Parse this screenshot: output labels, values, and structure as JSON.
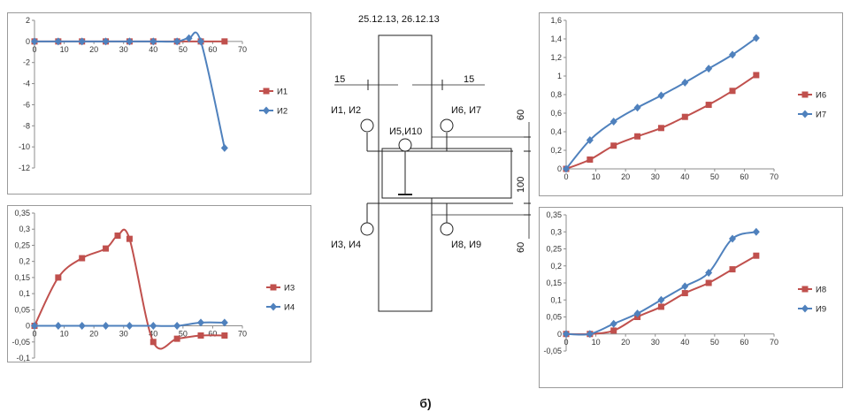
{
  "figure": {
    "caption": "б)"
  },
  "diagram": {
    "dates": "25.12.13, 26.12.13",
    "dim_left": "15",
    "dim_right": "15",
    "dim_top": "60",
    "dim_mid": "100",
    "dim_bottom": "60",
    "label_i1i2": "И1, И2",
    "label_i6i7": "И6, И7",
    "label_i5i10": "И5,И10",
    "label_i3i4": "И3, И4",
    "label_i8i9": "И8, И9"
  },
  "chart_data": [
    {
      "type": "line",
      "title": "",
      "xlim": [
        0,
        70
      ],
      "ylim": [
        -12,
        2
      ],
      "xticks": [
        0,
        10,
        20,
        30,
        40,
        50,
        60,
        70
      ],
      "yticks": [
        2,
        0,
        -2,
        -4,
        -6,
        -8,
        -10,
        -12
      ],
      "xaxis_at": 0,
      "legend": "right",
      "series": [
        {
          "name": "И1",
          "color": "#c0504d",
          "marker": "square",
          "x": [
            0,
            8,
            16,
            24,
            32,
            40,
            48,
            56,
            64
          ],
          "y": [
            0,
            0,
            0,
            0,
            0,
            0,
            0,
            0,
            0
          ]
        },
        {
          "name": "И2",
          "color": "#4f81bd",
          "marker": "diamond",
          "x": [
            0,
            8,
            16,
            24,
            32,
            40,
            48,
            52,
            56,
            64
          ],
          "y": [
            0,
            0,
            0,
            0,
            0,
            0,
            0,
            0.3,
            0,
            -10.1
          ]
        }
      ]
    },
    {
      "type": "line",
      "title": "",
      "xlim": [
        0,
        70
      ],
      "ylim": [
        -0.1,
        0.35
      ],
      "xticks": [
        0,
        10,
        20,
        30,
        40,
        50,
        60,
        70
      ],
      "yticks": [
        0.35,
        0.3,
        0.25,
        0.2,
        0.15,
        0.1,
        0.05,
        0,
        -0.05,
        -0.1
      ],
      "ytick_labels": [
        "0,35",
        "0,3",
        "0,25",
        "0,2",
        "0,15",
        "0,1",
        "0,05",
        "0",
        "-0,05",
        "-0,1"
      ],
      "xaxis_at": 0,
      "legend": "right",
      "series": [
        {
          "name": "И3",
          "color": "#c0504d",
          "marker": "square",
          "x": [
            0,
            8,
            16,
            24,
            28,
            32,
            40,
            48,
            56,
            64
          ],
          "y": [
            0,
            0.15,
            0.21,
            0.24,
            0.28,
            0.27,
            -0.05,
            -0.04,
            -0.03,
            -0.03
          ]
        },
        {
          "name": "И4",
          "color": "#4f81bd",
          "marker": "diamond",
          "x": [
            0,
            8,
            16,
            24,
            32,
            40,
            48,
            56,
            64
          ],
          "y": [
            0,
            0,
            0,
            0,
            0,
            0,
            0,
            0.01,
            0.01
          ]
        }
      ]
    },
    {
      "type": "line",
      "title": "",
      "xlim": [
        0,
        70
      ],
      "ylim": [
        0,
        1.6
      ],
      "xticks": [
        0,
        10,
        20,
        30,
        40,
        50,
        60,
        70
      ],
      "yticks": [
        1.6,
        1.4,
        1.2,
        1,
        0.8,
        0.6,
        0.4,
        0.2,
        0
      ],
      "ytick_labels": [
        "1,6",
        "1,4",
        "1,2",
        "1",
        "0,8",
        "0,6",
        "0,4",
        "0,2",
        "0"
      ],
      "xaxis_at": 0,
      "legend": "right",
      "series": [
        {
          "name": "И6",
          "color": "#c0504d",
          "marker": "square",
          "x": [
            0,
            8,
            16,
            24,
            32,
            40,
            48,
            56,
            64
          ],
          "y": [
            0,
            0.1,
            0.25,
            0.35,
            0.44,
            0.56,
            0.69,
            0.84,
            1.01
          ]
        },
        {
          "name": "И7",
          "color": "#4f81bd",
          "marker": "diamond",
          "x": [
            0,
            8,
            16,
            24,
            32,
            40,
            48,
            56,
            64
          ],
          "y": [
            0,
            0.31,
            0.51,
            0.66,
            0.79,
            0.93,
            1.08,
            1.23,
            1.41
          ]
        }
      ]
    },
    {
      "type": "line",
      "title": "",
      "xlim": [
        0,
        70
      ],
      "ylim": [
        -0.05,
        0.35
      ],
      "xticks": [
        0,
        10,
        20,
        30,
        40,
        50,
        60,
        70
      ],
      "yticks": [
        0.35,
        0.3,
        0.25,
        0.2,
        0.15,
        0.1,
        0.05,
        0,
        -0.05
      ],
      "ytick_labels": [
        "0,35",
        "0,3",
        "0,25",
        "0,2",
        "0,15",
        "0,1",
        "0,05",
        "0",
        "-0,05"
      ],
      "xaxis_at": 0,
      "legend": "right",
      "series": [
        {
          "name": "И8",
          "color": "#c0504d",
          "marker": "square",
          "x": [
            0,
            8,
            16,
            24,
            32,
            40,
            48,
            56,
            64
          ],
          "y": [
            0,
            0,
            0.01,
            0.05,
            0.08,
            0.12,
            0.15,
            0.19,
            0.23
          ]
        },
        {
          "name": "И9",
          "color": "#4f81bd",
          "marker": "diamond",
          "x": [
            0,
            8,
            16,
            24,
            32,
            40,
            48,
            56,
            64
          ],
          "y": [
            0,
            0,
            0.03,
            0.06,
            0.1,
            0.14,
            0.18,
            0.28,
            0.3
          ]
        }
      ]
    }
  ]
}
